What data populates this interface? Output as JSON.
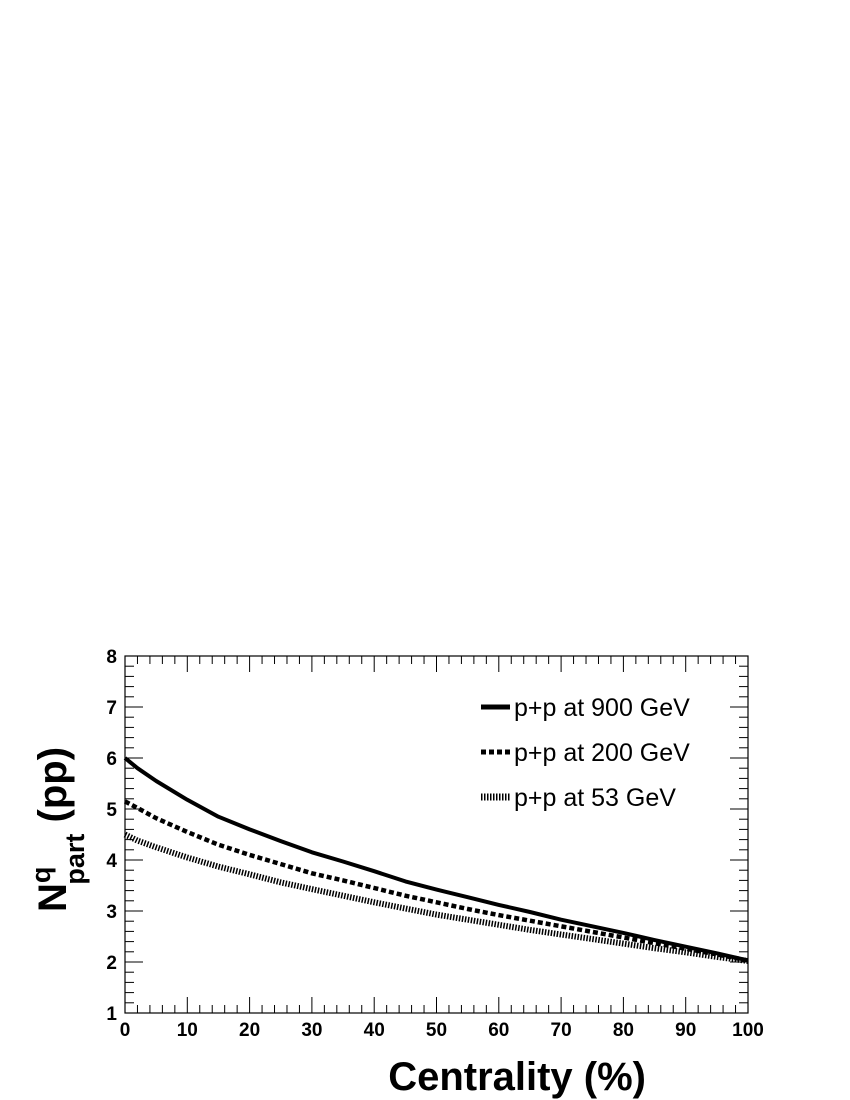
{
  "chart_data": {
    "type": "line",
    "xlabel": "Centrality (%)",
    "ylabel": {
      "main": "N",
      "superscript": "q",
      "subscript": "part",
      "suffix": " (pp)"
    },
    "xlim": [
      0,
      100
    ],
    "ylim": [
      1,
      8
    ],
    "x_ticks": [
      "0",
      "10",
      "20",
      "30",
      "40",
      "50",
      "60",
      "70",
      "80",
      "90",
      "100"
    ],
    "y_ticks": [
      "1",
      "2",
      "3",
      "4",
      "5",
      "6",
      "7",
      "8"
    ],
    "grid": false,
    "legend_position": "top-right",
    "x": [
      0,
      2,
      5,
      10,
      15,
      20,
      25,
      30,
      35,
      40,
      45,
      50,
      55,
      60,
      65,
      70,
      75,
      80,
      85,
      90,
      95,
      100
    ],
    "series": [
      {
        "name": "p+p at 900 GeV",
        "style": "solid",
        "values": [
          6.0,
          5.8,
          5.55,
          5.18,
          4.85,
          4.6,
          4.37,
          4.15,
          3.97,
          3.78,
          3.58,
          3.42,
          3.27,
          3.12,
          2.98,
          2.83,
          2.7,
          2.57,
          2.43,
          2.3,
          2.17,
          2.03
        ]
      },
      {
        "name": "p+p at 200 GeV",
        "style": "dashed",
        "values": [
          5.15,
          5.02,
          4.82,
          4.55,
          4.3,
          4.1,
          3.92,
          3.74,
          3.6,
          3.45,
          3.3,
          3.17,
          3.04,
          2.92,
          2.81,
          2.7,
          2.59,
          2.48,
          2.37,
          2.26,
          2.15,
          2.03
        ]
      },
      {
        "name": "p+p at 53 GeV",
        "style": "dotted",
        "values": [
          4.5,
          4.38,
          4.25,
          4.05,
          3.87,
          3.72,
          3.56,
          3.43,
          3.3,
          3.17,
          3.05,
          2.93,
          2.83,
          2.73,
          2.63,
          2.54,
          2.45,
          2.36,
          2.27,
          2.19,
          2.1,
          2.02
        ]
      }
    ]
  }
}
